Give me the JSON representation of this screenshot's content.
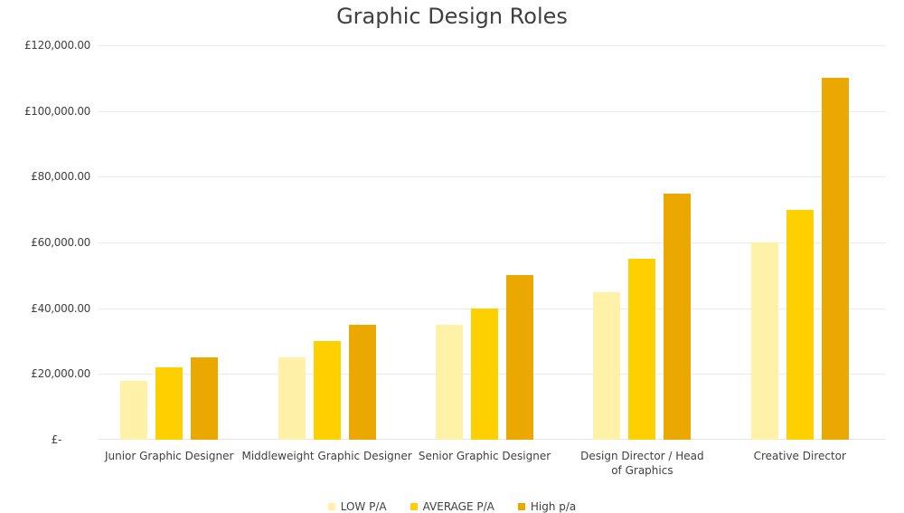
{
  "chart_data": {
    "type": "bar",
    "title": "Graphic Design Roles",
    "xlabel": "",
    "ylabel": "",
    "ylim": [
      0,
      120000
    ],
    "yticks": [
      0,
      20000,
      40000,
      60000,
      80000,
      100000,
      120000
    ],
    "ytick_labels": [
      "£-",
      "£20,000.00",
      "£40,000.00",
      "£60,000.00",
      "£80,000.00",
      "£100,000.00",
      "£120,000.00"
    ],
    "grid": true,
    "legend_position": "bottom",
    "categories": [
      "Junior Graphic Designer",
      "Middleweight Graphic Designer",
      "Senior Graphic Designer",
      "Design Director / Head of Graphics",
      "Creative Director"
    ],
    "series": [
      {
        "name": "LOW P/A",
        "color": "#FFF2A8",
        "values": [
          18000,
          25000,
          35000,
          45000,
          60000
        ]
      },
      {
        "name": "AVERAGE P/A",
        "color": "#FFD000",
        "values": [
          22000,
          30000,
          40000,
          55000,
          70000
        ]
      },
      {
        "name": "High p/a",
        "color": "#EBA800",
        "values": [
          25000,
          35000,
          50000,
          75000,
          110000
        ]
      }
    ]
  },
  "labels": {
    "title": "Graphic Design Roles",
    "yticks": [
      "£-",
      "£20,000.00",
      "£40,000.00",
      "£60,000.00",
      "£80,000.00",
      "£100,000.00",
      "£120,000.00"
    ],
    "categories": [
      "Junior Graphic Designer",
      "Middleweight Graphic Designer",
      "Senior Graphic Designer",
      "Design Director / Head of Graphics",
      "Creative Director"
    ],
    "legend": [
      "LOW P/A",
      "AVERAGE P/A",
      "High p/a"
    ]
  }
}
